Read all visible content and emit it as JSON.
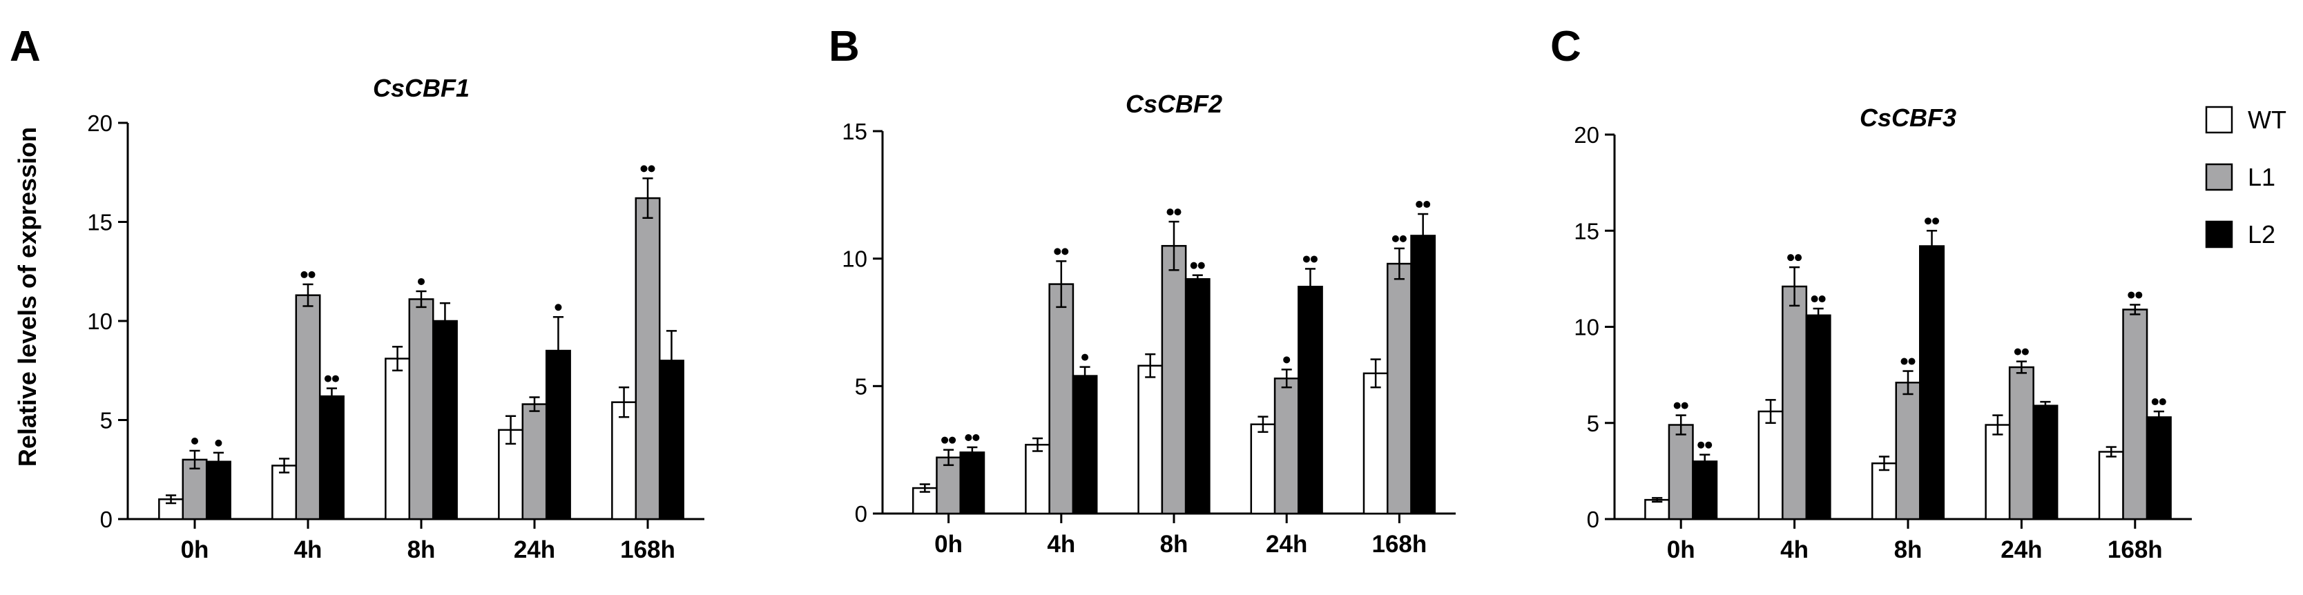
{
  "figure": {
    "ylabel": "Relative levels of expression",
    "legend": {
      "placement": "top-right",
      "entries": [
        {
          "name": "WT",
          "color": "#ffffff"
        },
        {
          "name": "L1",
          "color": "#a6a6a8"
        },
        {
          "name": "L2",
          "color": "#000000"
        }
      ]
    }
  },
  "chart_data": [
    {
      "panel": "A",
      "type": "bar",
      "title": "CsCBF1",
      "xlabel": "",
      "ylabel": "Relative levels of expression",
      "ylim": [
        0,
        20
      ],
      "yticks": [
        0,
        5,
        10,
        15,
        20
      ],
      "categories": [
        "0h",
        "4h",
        "8h",
        "24h",
        "168h"
      ],
      "series": [
        {
          "name": "WT",
          "color": "#ffffff",
          "values": [
            1.0,
            2.7,
            8.1,
            4.5,
            5.9
          ],
          "errors": [
            0.2,
            0.35,
            0.6,
            0.7,
            0.75
          ],
          "sig": [
            "",
            "",
            "",
            "",
            ""
          ]
        },
        {
          "name": "L1",
          "color": "#a6a6a8",
          "values": [
            3.0,
            11.3,
            11.1,
            5.8,
            16.2
          ],
          "errors": [
            0.45,
            0.55,
            0.4,
            0.35,
            1.0
          ],
          "sig": [
            "•",
            "••",
            "•",
            "",
            "••"
          ]
        },
        {
          "name": "L2",
          "color": "#000000",
          "values": [
            2.9,
            6.2,
            10.0,
            8.5,
            8.0
          ],
          "errors": [
            0.45,
            0.4,
            0.9,
            1.7,
            1.5
          ],
          "sig": [
            "•",
            "••",
            "",
            "•",
            ""
          ]
        }
      ]
    },
    {
      "panel": "B",
      "type": "bar",
      "title": "CsCBF2",
      "xlabel": "",
      "ylabel": "",
      "ylim": [
        0,
        15
      ],
      "yticks": [
        0,
        5,
        10,
        15
      ],
      "categories": [
        "0h",
        "4h",
        "8h",
        "24h",
        "168h"
      ],
      "series": [
        {
          "name": "WT",
          "color": "#ffffff",
          "values": [
            1.0,
            2.7,
            5.8,
            3.5,
            5.5
          ],
          "errors": [
            0.15,
            0.25,
            0.45,
            0.3,
            0.55
          ],
          "sig": [
            "",
            "",
            "",
            "",
            ""
          ]
        },
        {
          "name": "L1",
          "color": "#a6a6a8",
          "values": [
            2.2,
            9.0,
            10.5,
            5.3,
            9.8
          ],
          "errors": [
            0.3,
            0.9,
            0.95,
            0.35,
            0.6
          ],
          "sig": [
            "••",
            "••",
            "••",
            "•",
            "••"
          ]
        },
        {
          "name": "L2",
          "color": "#000000",
          "values": [
            2.4,
            5.4,
            9.2,
            8.9,
            10.9
          ],
          "errors": [
            0.2,
            0.35,
            0.15,
            0.7,
            0.85
          ],
          "sig": [
            "••",
            "•",
            "••",
            "••",
            "••"
          ]
        }
      ]
    },
    {
      "panel": "C",
      "type": "bar",
      "title": "CsCBF3",
      "xlabel": "",
      "ylabel": "",
      "ylim": [
        0,
        20
      ],
      "yticks": [
        0,
        5,
        10,
        15,
        20
      ],
      "categories": [
        "0h",
        "4h",
        "8h",
        "24h",
        "168h"
      ],
      "series": [
        {
          "name": "WT",
          "color": "#ffffff",
          "values": [
            1.0,
            5.6,
            2.9,
            4.9,
            3.5
          ],
          "errors": [
            0.1,
            0.6,
            0.35,
            0.5,
            0.25
          ],
          "sig": [
            "",
            "",
            "",
            "",
            ""
          ]
        },
        {
          "name": "L1",
          "color": "#a6a6a8",
          "values": [
            4.9,
            12.1,
            7.1,
            7.9,
            10.9
          ],
          "errors": [
            0.5,
            1.0,
            0.6,
            0.3,
            0.25
          ],
          "sig": [
            "••",
            "••",
            "••",
            "••",
            "••"
          ]
        },
        {
          "name": "L2",
          "color": "#000000",
          "values": [
            3.0,
            10.6,
            14.2,
            5.9,
            5.3
          ],
          "errors": [
            0.35,
            0.35,
            0.8,
            0.2,
            0.3
          ],
          "sig": [
            "••",
            "••",
            "••",
            "",
            "••"
          ]
        }
      ]
    }
  ]
}
